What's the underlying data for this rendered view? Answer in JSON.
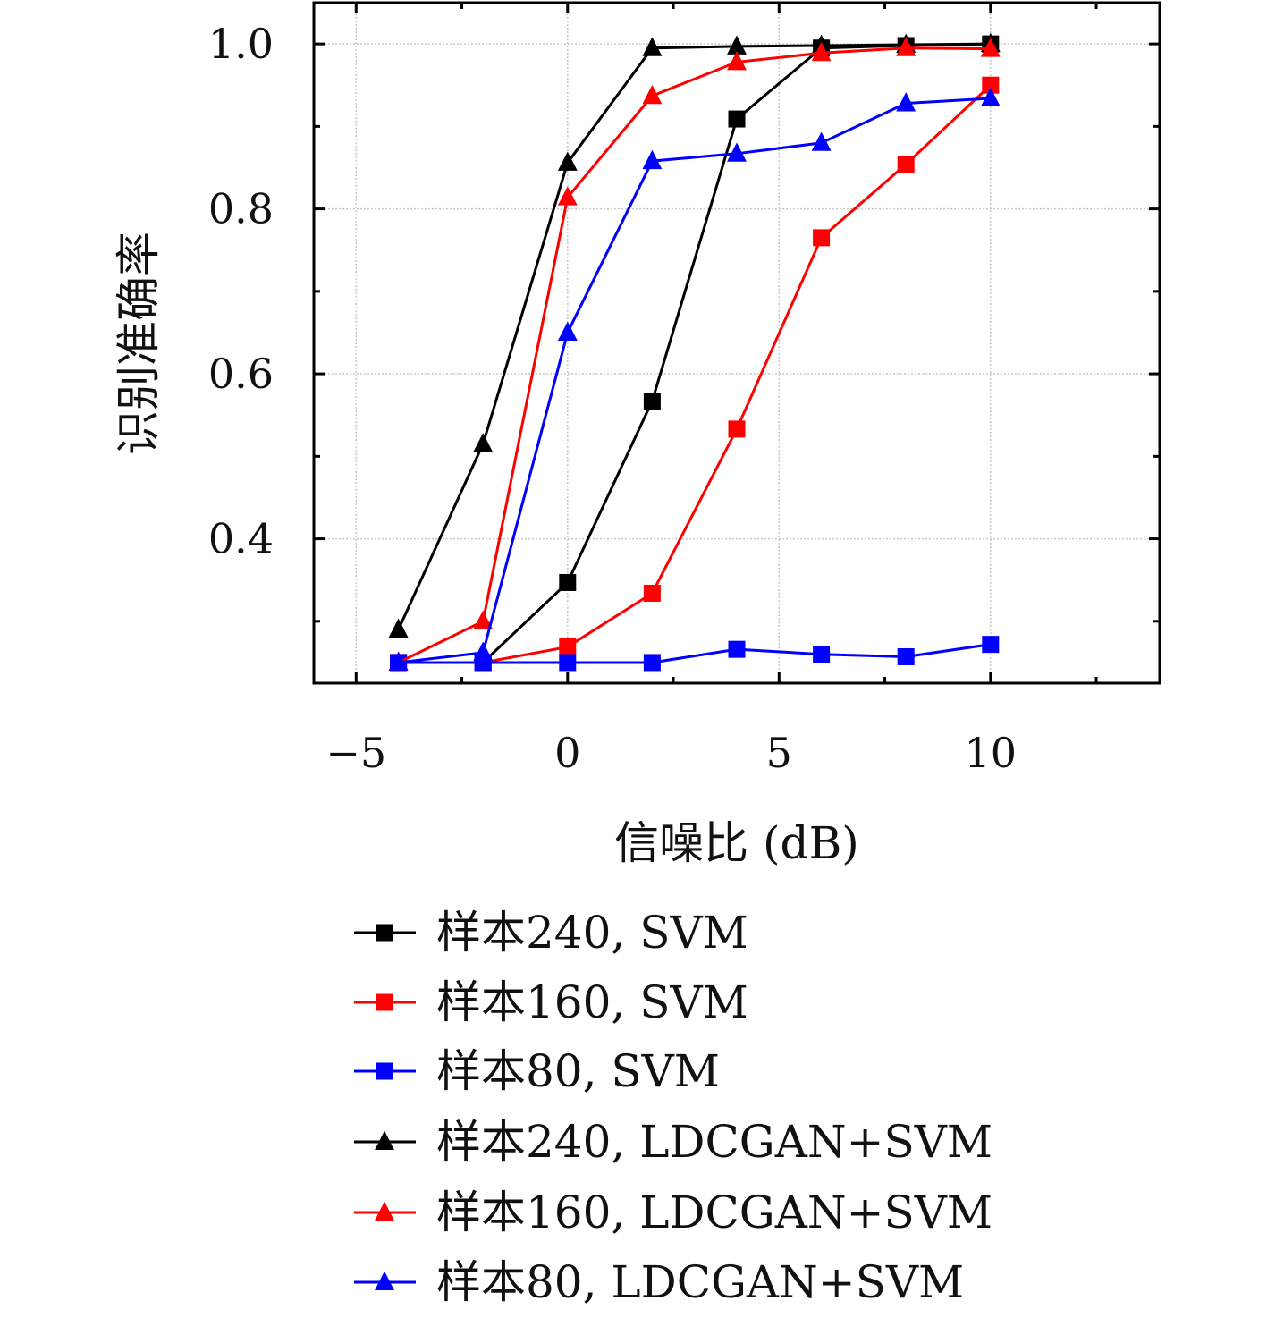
{
  "chart_data": {
    "type": "line",
    "xlabel": "信噪比 (dB)",
    "ylabel": "识别准确率",
    "xlim": [
      -6,
      14
    ],
    "ylim": [
      0.225,
      1.05
    ],
    "x_ticks": [
      -5,
      0,
      5,
      10
    ],
    "x_tick_labels": [
      "−5",
      "0",
      "5",
      "10"
    ],
    "y_ticks": [
      0.4,
      0.6,
      0.8,
      1.0
    ],
    "y_tick_labels": [
      "0.4",
      "0.6",
      "0.8",
      "1.0"
    ],
    "grid": true,
    "legend_position": "below",
    "x": [
      -4,
      -2,
      0,
      2,
      4,
      6,
      8,
      10
    ],
    "series": [
      {
        "name": "样本240, SVM",
        "color": "#000000",
        "marker": "square",
        "values": [
          0.25,
          0.25,
          0.347,
          0.567,
          0.909,
          0.995,
          0.998,
          1.0
        ]
      },
      {
        "name": "样本160, SVM",
        "color": "#ff0000",
        "marker": "square",
        "values": [
          0.25,
          0.25,
          0.269,
          0.334,
          0.533,
          0.765,
          0.854,
          0.95
        ]
      },
      {
        "name": "样本80, SVM",
        "color": "#0000ff",
        "marker": "square",
        "values": [
          0.25,
          0.25,
          0.25,
          0.25,
          0.266,
          0.26,
          0.257,
          0.272
        ]
      },
      {
        "name": "样本240, LDCGAN+SVM",
        "color": "#000000",
        "marker": "triangle",
        "values": [
          0.29,
          0.515,
          0.856,
          0.995,
          0.997,
          0.998,
          0.999,
          1.0
        ]
      },
      {
        "name": "样本160, LDCGAN+SVM",
        "color": "#ff0000",
        "marker": "triangle",
        "values": [
          0.25,
          0.3,
          0.814,
          0.937,
          0.978,
          0.989,
          0.995,
          0.994
        ]
      },
      {
        "name": "样本80, LDCGAN+SVM",
        "color": "#0000ff",
        "marker": "triangle",
        "values": [
          0.25,
          0.262,
          0.65,
          0.858,
          0.867,
          0.88,
          0.928,
          0.934
        ]
      }
    ]
  }
}
